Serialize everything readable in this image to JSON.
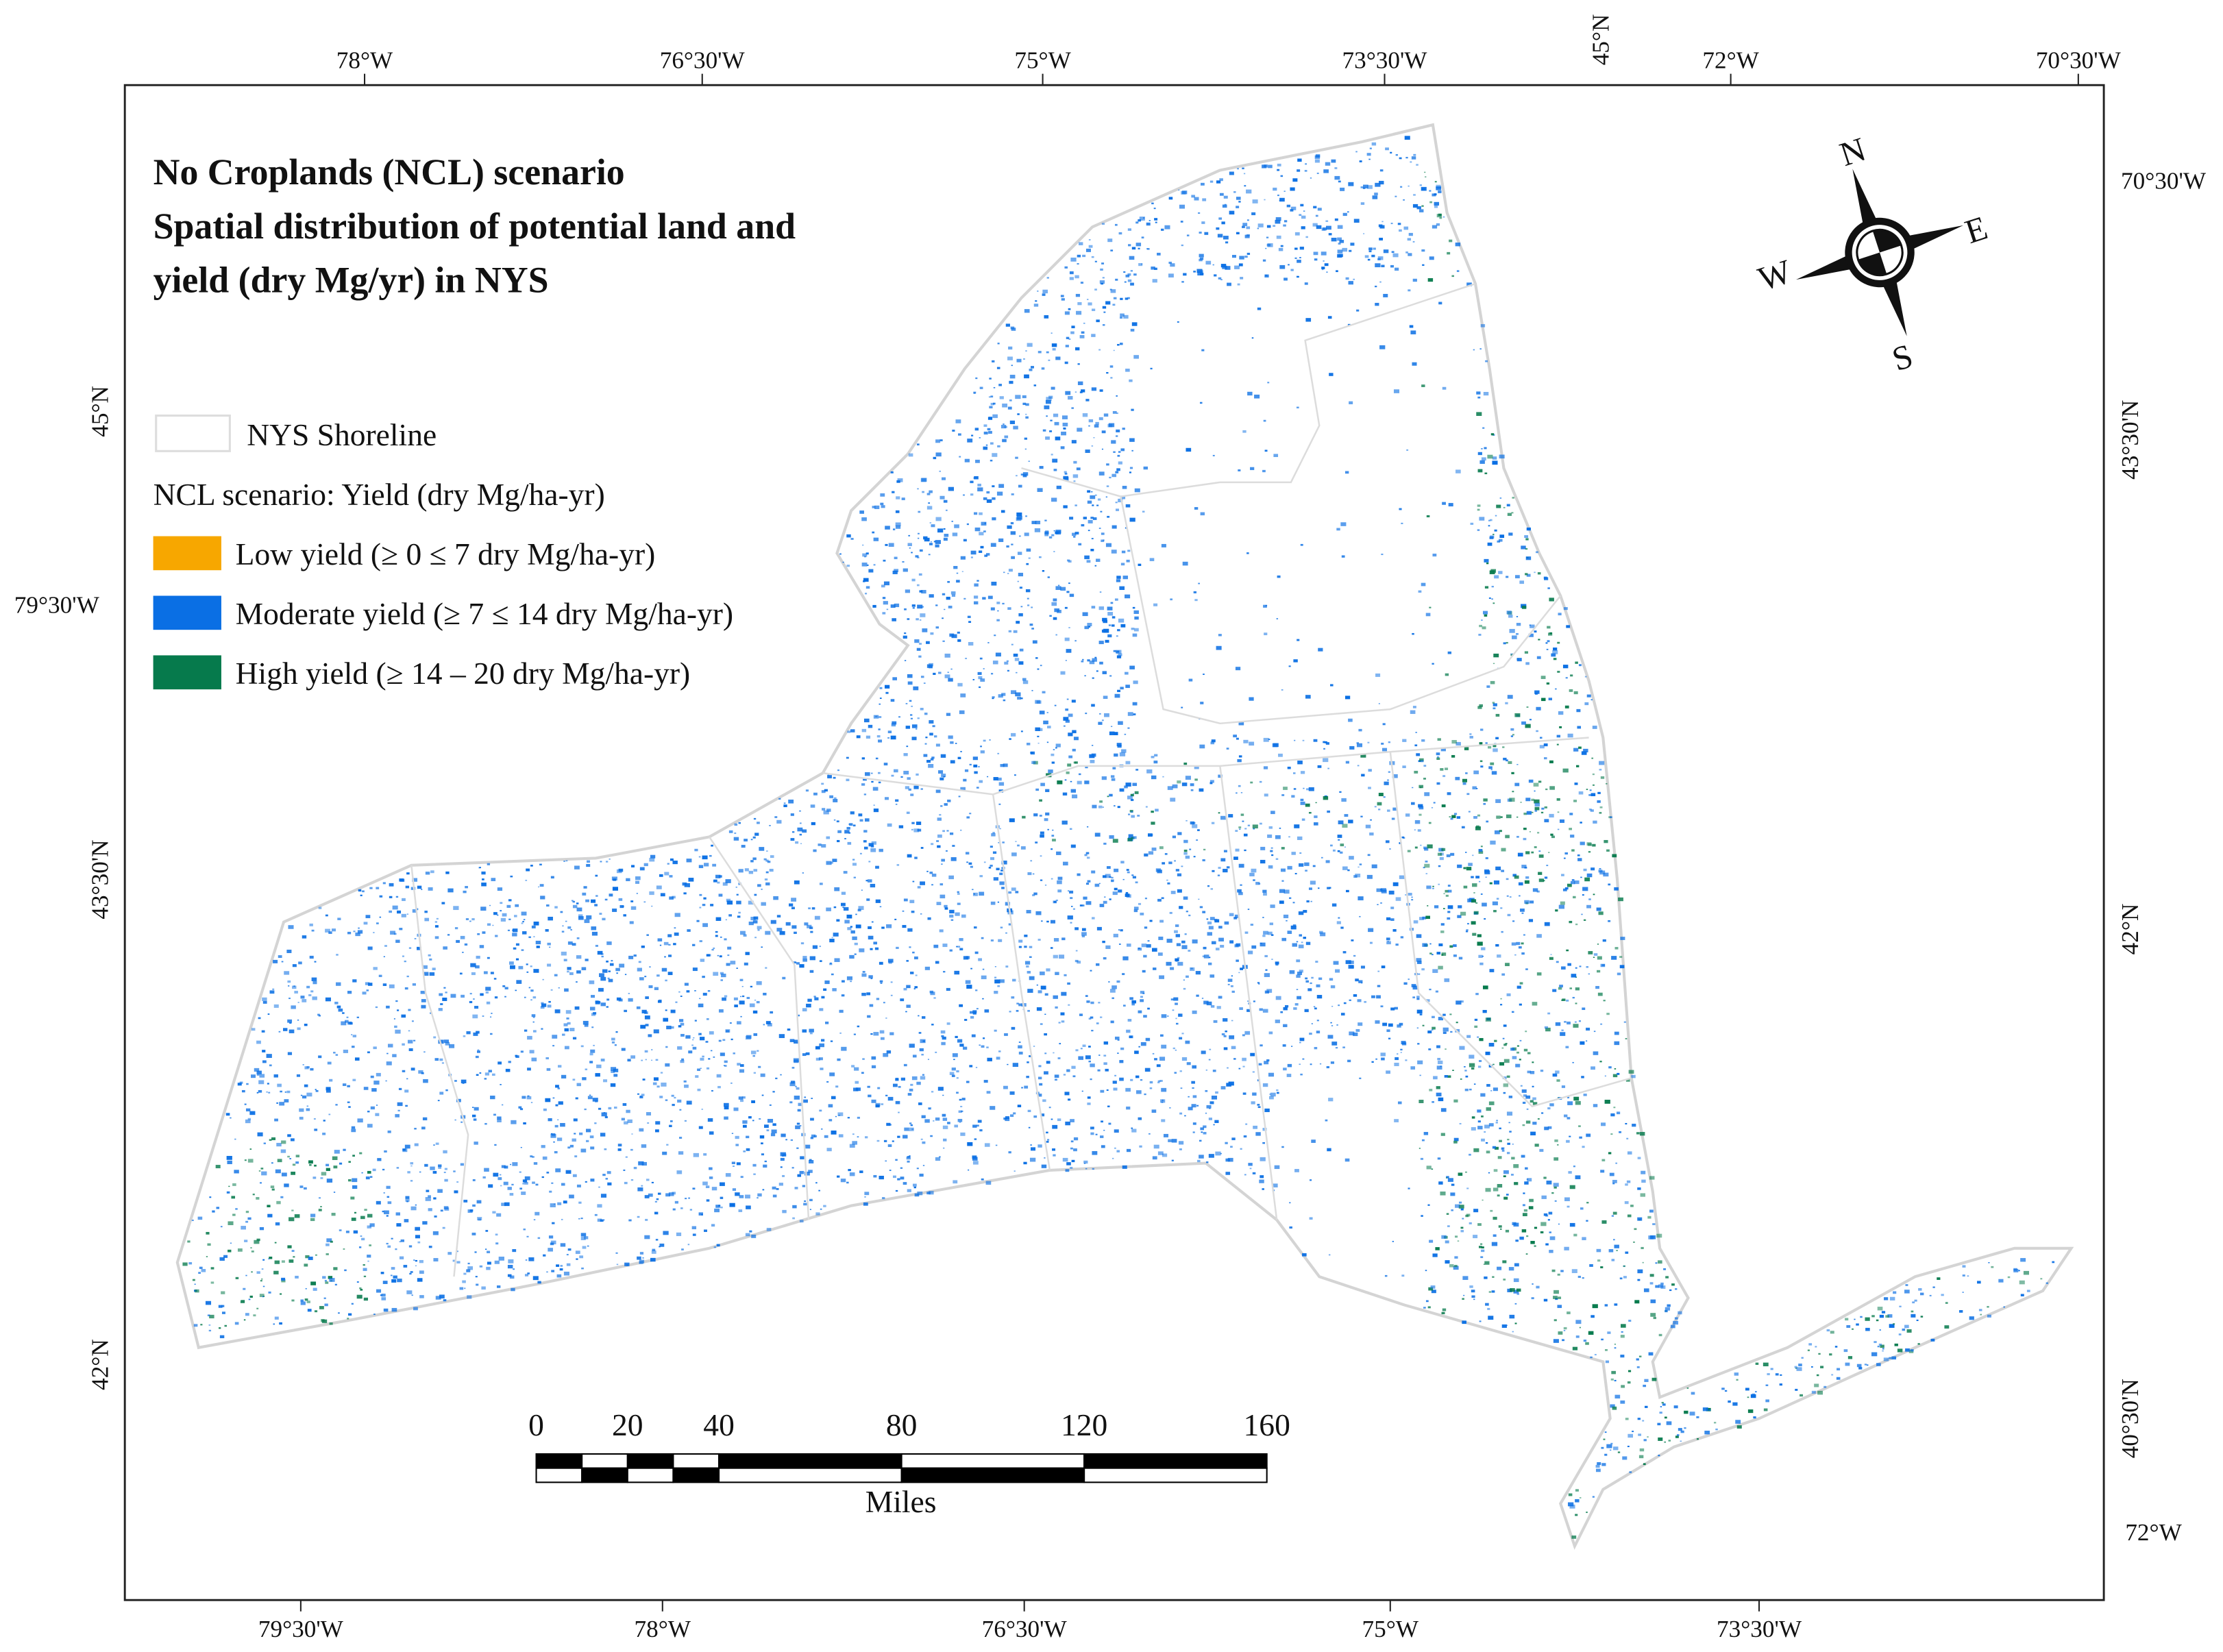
{
  "title": [
    "No Croplands (NCL) scenario",
    "Spatial distribution of potential land and",
    "yield (dry Mg/yr) in NYS"
  ],
  "legend": {
    "shoreline": "NYS Shoreline",
    "heading": "NCL scenario: Yield (dry Mg/ha-yr)",
    "items": [
      {
        "label": "Low yield (≥ 0 ≤ 7 dry Mg/ha-yr)",
        "color": "#f7a700"
      },
      {
        "label": "Moderate yield (≥ 7 ≤ 14 dry Mg/ha-yr)",
        "color": "#0a6fe4"
      },
      {
        "label": "High yield (≥ 14 – 20 dry Mg/ha-yr)",
        "color": "#067a4c"
      }
    ]
  },
  "compass": {
    "n": "N",
    "e": "E",
    "s": "S",
    "w": "W"
  },
  "scale_bar": {
    "ticks": [
      0,
      20,
      40,
      80,
      120,
      160
    ],
    "unit": "Miles"
  },
  "graticule": {
    "top": [
      "78°W",
      "76°30'W",
      "75°W",
      "73°30'W",
      "45°N",
      "72°W",
      "70°30'W"
    ],
    "bottom": [
      "79°30'W",
      "78°W",
      "76°30'W",
      "75°W",
      "73°30'W"
    ],
    "left": [
      "45°N",
      "79°30'W",
      "43°30'N",
      "42°N"
    ],
    "right": [
      "70°30'W",
      "43°30'N",
      "42°N",
      "40°30'N",
      "72°W"
    ]
  }
}
